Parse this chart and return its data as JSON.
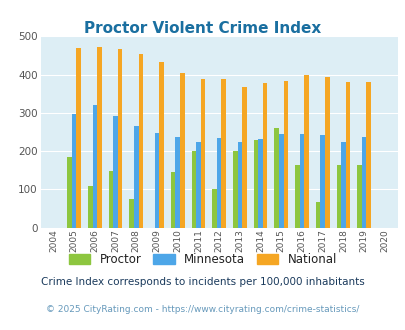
{
  "title": "Proctor Violent Crime Index",
  "years": [
    2004,
    2005,
    2006,
    2007,
    2008,
    2009,
    2010,
    2011,
    2012,
    2013,
    2014,
    2015,
    2016,
    2017,
    2018,
    2019,
    2020
  ],
  "proctor": [
    0,
    185,
    110,
    148,
    74,
    0,
    145,
    200,
    100,
    200,
    230,
    260,
    165,
    68,
    165,
    165,
    0
  ],
  "minnesota": [
    0,
    298,
    320,
    292,
    265,
    248,
    238,
    224,
    234,
    225,
    232,
    244,
    246,
    241,
    224,
    237,
    0
  ],
  "national": [
    0,
    469,
    473,
    467,
    455,
    432,
    405,
    388,
    388,
    368,
    378,
    384,
    399,
    394,
    381,
    380,
    0
  ],
  "proctor_color": "#8dc63f",
  "minnesota_color": "#4da6e8",
  "national_color": "#f5a623",
  "plot_bg": "#ddeef5",
  "ylim": [
    0,
    500
  ],
  "yticks": [
    0,
    100,
    200,
    300,
    400,
    500
  ],
  "legend_labels": [
    "Proctor",
    "Minnesota",
    "National"
  ],
  "subtitle": "Crime Index corresponds to incidents per 100,000 inhabitants",
  "copyright": "© 2025 CityRating.com - https://www.cityrating.com/crime-statistics/",
  "title_color": "#1a6fa0",
  "subtitle_color": "#1a3a5c",
  "copyright_color": "#6699bb"
}
